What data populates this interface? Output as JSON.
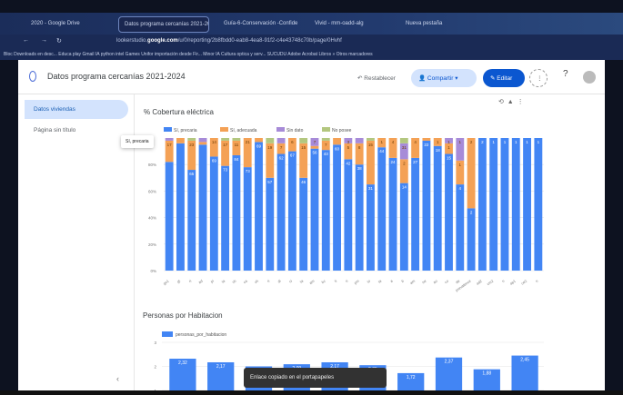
{
  "browser": {
    "tabs": [
      "2020 - Google Drive",
      "Datos programa cercanías 2021-2024",
      "Guía-6-Conservación -Confide",
      "Vivid - mm-oadd-alg",
      "Nueva pestaña"
    ],
    "url_prefix": "lookerstudio.",
    "url_domain": "google.com",
    "url_suffix": "/u/0/reporting/2b8fbdd0-eab8-4ea8-91f2-c4e43748c70b/page/0Hvhf",
    "bookmarks": "Bloc  Downloads en desc...  Educa play  Gmail  IA  python  intel  Games  Unifor  importación desde Fir...  Minor IA  Cultura optica y serv...  SUCUDU  Adobe Acrobat  Libros  »  Otros marcadores"
  },
  "app": {
    "title": "Datos programa cercanías 2021-2024",
    "reset_label": "Restablecer",
    "share_label": "Compartir",
    "edit_label": "Editar",
    "help_icon": "help-icon"
  },
  "sidebar": {
    "items": [
      {
        "label": "Datos viviendas",
        "selected": true
      },
      {
        "label": "Página sin título",
        "selected": false
      }
    ]
  },
  "tooltip": "Sí, precaria",
  "toast": "Enlace copiado en el portapapeles",
  "chart_data": [
    {
      "type": "bar",
      "stacked": true,
      "title": "% Cobertura eléctrica",
      "ylim": [
        0,
        100
      ],
      "yticks": [
        "0%",
        "20%",
        "40%",
        "60%",
        "80%"
      ],
      "legend_position": "top-left",
      "categories": [
        "gn1",
        "gt",
        "ri",
        "ad",
        "pi",
        "ta",
        "vh",
        "ca",
        "vh",
        "ri",
        "di",
        "ci",
        "ta",
        "am",
        "bc",
        "ti",
        "ri",
        "pm",
        "to",
        "ta",
        "a",
        "b",
        "am",
        "ne",
        "ao",
        "co",
        "de",
        "prevalence",
        "ad2",
        "cm2",
        "n",
        "ap1",
        "ce2",
        "n"
      ],
      "series": [
        {
          "name": "Sí, precaria",
          "color": "#4285f4",
          "values": [
            82,
            96,
            76,
            95,
            86,
            79,
            87,
            78,
            97,
            70,
            88,
            90,
            70,
            92,
            91,
            95,
            84,
            80,
            65,
            93,
            85,
            66,
            85,
            98,
            94,
            88,
            65,
            47,
            100,
            100,
            100,
            100,
            100,
            100
          ],
          "labels": [
            "",
            "",
            "65",
            "",
            "69",
            "73",
            "84",
            "73",
            "69",
            "57",
            "62",
            "67",
            "46",
            "56",
            "43",
            "60",
            "42",
            "38",
            "31",
            "44",
            "24",
            "14",
            "27",
            "22",
            "18",
            "15",
            "4",
            "2",
            "2",
            "1",
            "1",
            "1",
            "1",
            "1"
          ]
        },
        {
          "name": "Sí, adecuada",
          "color": "#f4a155",
          "values": [
            16,
            4,
            22,
            2,
            14,
            19,
            11,
            22,
            3,
            26,
            8,
            10,
            26,
            2,
            7,
            5,
            12,
            16,
            33,
            7,
            15,
            18,
            15,
            2,
            6,
            8,
            18,
            53,
            0,
            0,
            0,
            0,
            0,
            0
          ],
          "labels": [
            "17",
            "",
            "23",
            "",
            "14",
            "17",
            "11",
            "21",
            "",
            "19",
            "7",
            "6",
            "15",
            "",
            "7",
            "",
            "5",
            "8",
            "15",
            "1",
            "4",
            "2",
            "4",
            "",
            "1",
            "1",
            "1",
            "2",
            "",
            "",
            "",
            "",
            "",
            ""
          ]
        },
        {
          "name": "Sin dato",
          "color": "#a78bd8",
          "values": [
            2,
            0,
            0,
            3,
            0,
            0,
            0,
            0,
            0,
            0,
            4,
            0,
            0,
            6,
            0,
            0,
            4,
            4,
            0,
            0,
            0,
            12,
            0,
            0,
            0,
            4,
            17,
            0,
            0,
            0,
            0,
            0,
            0,
            0
          ],
          "labels": [
            "",
            "",
            "",
            "",
            "",
            "",
            "",
            "",
            "",
            "",
            "",
            "",
            "",
            "7",
            "",
            "",
            "3",
            "",
            "",
            "",
            "",
            "31",
            "",
            "",
            "",
            "1",
            "1",
            "",
            "",
            "",
            "",
            "",
            "",
            ""
          ]
        },
        {
          "name": "No posee",
          "color": "#b3c77f",
          "values": [
            0,
            0,
            2,
            0,
            0,
            2,
            2,
            0,
            0,
            4,
            0,
            0,
            4,
            0,
            2,
            0,
            0,
            0,
            2,
            0,
            0,
            4,
            0,
            0,
            0,
            0,
            0,
            0,
            0,
            0,
            0,
            0,
            0,
            0
          ],
          "labels": []
        }
      ]
    },
    {
      "type": "bar",
      "title": "Personas por Habitacion",
      "legend": "personas_por_habitacion",
      "color": "#4285f4",
      "yticks": [
        "1",
        "2",
        "3"
      ],
      "ylim": [
        1,
        3
      ],
      "values": [
        2.32,
        2.17,
        2.0,
        2.09,
        2.17,
        2.05,
        1.72,
        2.37,
        1.88,
        2.45
      ],
      "labels": [
        "2,32",
        "2,17",
        "",
        "2,09",
        "2,17",
        "2,05",
        "1,72",
        "2,37",
        "1,88",
        "2,45"
      ]
    }
  ]
}
